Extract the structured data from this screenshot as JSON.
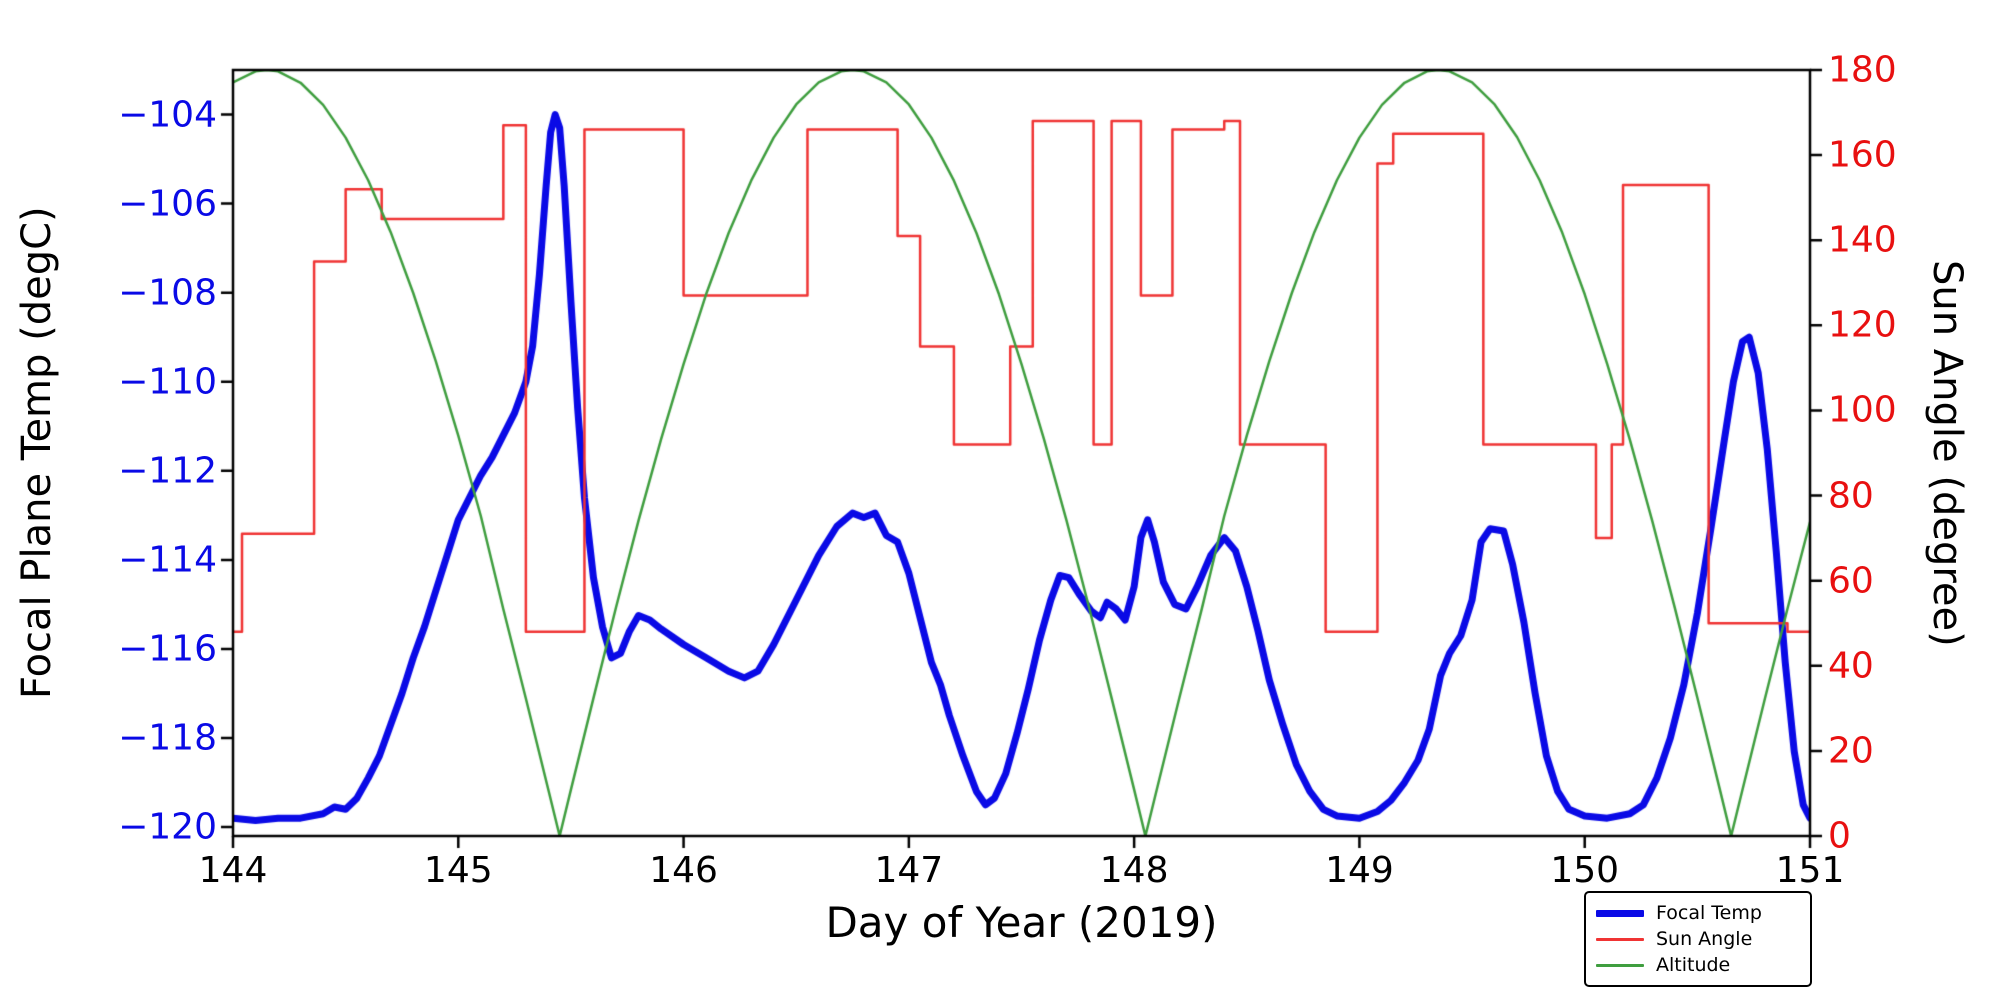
{
  "chart_data": {
    "type": "line",
    "title": "",
    "xlabel": "Day of Year (2019)",
    "ylabel_left": "Focal Plane Temp (degC)",
    "ylabel_right": "Sun Angle (degree)",
    "xlim": [
      144,
      151
    ],
    "ylim_left": [
      -120.2,
      -103.0
    ],
    "ylim_right": [
      0,
      180
    ],
    "grid": false,
    "xticks": {
      "values": [
        144,
        145,
        146,
        147,
        148,
        149,
        150,
        151
      ],
      "labels": [
        "144",
        "145",
        "146",
        "147",
        "148",
        "149",
        "150",
        "151"
      ]
    },
    "yticks_left": {
      "values": [
        -104,
        -106,
        -108,
        -110,
        -112,
        -114,
        -116,
        -118,
        -120
      ],
      "labels": [
        "−104",
        "−106",
        "−108",
        "−110",
        "−112",
        "−114",
        "−116",
        "−118",
        "−120"
      ]
    },
    "yticks_right": {
      "values": [
        0,
        20,
        40,
        60,
        80,
        100,
        120,
        140,
        160,
        180
      ],
      "labels": [
        "0",
        "20",
        "40",
        "60",
        "80",
        "100",
        "120",
        "140",
        "160",
        "180"
      ]
    },
    "legend": {
      "position": "lower right, below axis"
    },
    "series": [
      {
        "name": "Focal Temp",
        "axis": "left",
        "style": "line",
        "color": "#0a0ae6",
        "width": 7,
        "points": [
          [
            144,
            -119.8
          ],
          [
            144.1,
            -119.85
          ],
          [
            144.2,
            -119.8
          ],
          [
            144.3,
            -119.8
          ],
          [
            144.4,
            -119.7
          ],
          [
            144.45,
            -119.55
          ],
          [
            144.5,
            -119.6
          ],
          [
            144.55,
            -119.35
          ],
          [
            144.6,
            -118.9
          ],
          [
            144.65,
            -118.4
          ],
          [
            144.7,
            -117.7
          ],
          [
            144.75,
            -117.0
          ],
          [
            144.8,
            -116.2
          ],
          [
            144.85,
            -115.5
          ],
          [
            144.9,
            -114.7
          ],
          [
            144.95,
            -113.9
          ],
          [
            145.0,
            -113.1
          ],
          [
            145.05,
            -112.6
          ],
          [
            145.1,
            -112.1
          ],
          [
            145.15,
            -111.7
          ],
          [
            145.2,
            -111.2
          ],
          [
            145.25,
            -110.7
          ],
          [
            145.3,
            -110.0
          ],
          [
            145.33,
            -109.2
          ],
          [
            145.36,
            -107.6
          ],
          [
            145.39,
            -105.6
          ],
          [
            145.41,
            -104.4
          ],
          [
            145.43,
            -104.0
          ],
          [
            145.45,
            -104.3
          ],
          [
            145.47,
            -105.6
          ],
          [
            145.5,
            -108.2
          ],
          [
            145.53,
            -110.6
          ],
          [
            145.56,
            -112.6
          ],
          [
            145.6,
            -114.4
          ],
          [
            145.64,
            -115.5
          ],
          [
            145.68,
            -116.2
          ],
          [
            145.72,
            -116.1
          ],
          [
            145.76,
            -115.6
          ],
          [
            145.8,
            -115.25
          ],
          [
            145.85,
            -115.35
          ],
          [
            145.9,
            -115.55
          ],
          [
            146.0,
            -115.9
          ],
          [
            146.1,
            -116.2
          ],
          [
            146.2,
            -116.5
          ],
          [
            146.27,
            -116.65
          ],
          [
            146.33,
            -116.5
          ],
          [
            146.4,
            -115.9
          ],
          [
            146.5,
            -114.9
          ],
          [
            146.6,
            -113.9
          ],
          [
            146.68,
            -113.25
          ],
          [
            146.75,
            -112.95
          ],
          [
            146.8,
            -113.05
          ],
          [
            146.85,
            -112.95
          ],
          [
            146.9,
            -113.45
          ],
          [
            146.95,
            -113.6
          ],
          [
            147.0,
            -114.3
          ],
          [
            147.05,
            -115.3
          ],
          [
            147.1,
            -116.3
          ],
          [
            147.14,
            -116.8
          ],
          [
            147.18,
            -117.5
          ],
          [
            147.24,
            -118.4
          ],
          [
            147.3,
            -119.2
          ],
          [
            147.34,
            -119.5
          ],
          [
            147.38,
            -119.35
          ],
          [
            147.43,
            -118.8
          ],
          [
            147.48,
            -117.9
          ],
          [
            147.53,
            -116.9
          ],
          [
            147.58,
            -115.8
          ],
          [
            147.63,
            -114.9
          ],
          [
            147.67,
            -114.35
          ],
          [
            147.71,
            -114.4
          ],
          [
            147.76,
            -114.8
          ],
          [
            147.81,
            -115.15
          ],
          [
            147.85,
            -115.3
          ],
          [
            147.88,
            -114.95
          ],
          [
            147.92,
            -115.1
          ],
          [
            147.96,
            -115.35
          ],
          [
            148.0,
            -114.6
          ],
          [
            148.03,
            -113.5
          ],
          [
            148.06,
            -113.1
          ],
          [
            148.09,
            -113.6
          ],
          [
            148.13,
            -114.5
          ],
          [
            148.18,
            -115.0
          ],
          [
            148.23,
            -115.1
          ],
          [
            148.28,
            -114.6
          ],
          [
            148.34,
            -113.9
          ],
          [
            148.4,
            -113.5
          ],
          [
            148.45,
            -113.8
          ],
          [
            148.5,
            -114.6
          ],
          [
            148.55,
            -115.6
          ],
          [
            148.6,
            -116.7
          ],
          [
            148.66,
            -117.7
          ],
          [
            148.72,
            -118.6
          ],
          [
            148.78,
            -119.2
          ],
          [
            148.84,
            -119.6
          ],
          [
            148.9,
            -119.75
          ],
          [
            149.0,
            -119.8
          ],
          [
            149.08,
            -119.65
          ],
          [
            149.14,
            -119.4
          ],
          [
            149.2,
            -119.0
          ],
          [
            149.26,
            -118.5
          ],
          [
            149.31,
            -117.8
          ],
          [
            149.36,
            -116.6
          ],
          [
            149.4,
            -116.1
          ],
          [
            149.45,
            -115.7
          ],
          [
            149.5,
            -114.9
          ],
          [
            149.54,
            -113.6
          ],
          [
            149.58,
            -113.3
          ],
          [
            149.64,
            -113.35
          ],
          [
            149.68,
            -114.1
          ],
          [
            149.73,
            -115.4
          ],
          [
            149.78,
            -117.0
          ],
          [
            149.83,
            -118.4
          ],
          [
            149.88,
            -119.2
          ],
          [
            149.93,
            -119.6
          ],
          [
            150.0,
            -119.75
          ],
          [
            150.1,
            -119.8
          ],
          [
            150.2,
            -119.7
          ],
          [
            150.26,
            -119.5
          ],
          [
            150.32,
            -118.9
          ],
          [
            150.38,
            -118.0
          ],
          [
            150.44,
            -116.8
          ],
          [
            150.5,
            -115.2
          ],
          [
            150.56,
            -113.3
          ],
          [
            150.62,
            -111.3
          ],
          [
            150.66,
            -110.0
          ],
          [
            150.7,
            -109.1
          ],
          [
            150.73,
            -109.0
          ],
          [
            150.77,
            -109.8
          ],
          [
            150.81,
            -111.5
          ],
          [
            150.85,
            -113.8
          ],
          [
            150.89,
            -116.3
          ],
          [
            150.93,
            -118.3
          ],
          [
            150.97,
            -119.5
          ],
          [
            151.0,
            -119.8
          ]
        ]
      },
      {
        "name": "Sun Angle",
        "axis": "right",
        "style": "step",
        "color": "#f03434",
        "width": 2.5,
        "points": [
          [
            144.0,
            48
          ],
          [
            144.04,
            71
          ],
          [
            144.36,
            135
          ],
          [
            144.5,
            152
          ],
          [
            144.66,
            145
          ],
          [
            145.2,
            167
          ],
          [
            145.3,
            48
          ],
          [
            145.56,
            166
          ],
          [
            146.0,
            127
          ],
          [
            146.55,
            166
          ],
          [
            146.95,
            141
          ],
          [
            147.05,
            115
          ],
          [
            147.2,
            92
          ],
          [
            147.45,
            115
          ],
          [
            147.55,
            168
          ],
          [
            147.82,
            92
          ],
          [
            147.9,
            168
          ],
          [
            148.03,
            127
          ],
          [
            148.17,
            166
          ],
          [
            148.4,
            168
          ],
          [
            148.47,
            92
          ],
          [
            148.85,
            48
          ],
          [
            149.08,
            158
          ],
          [
            149.15,
            165
          ],
          [
            149.55,
            92
          ],
          [
            150.05,
            70
          ],
          [
            150.12,
            92
          ],
          [
            150.17,
            153
          ],
          [
            150.55,
            50
          ],
          [
            150.9,
            48
          ]
        ]
      },
      {
        "name": "Altitude",
        "axis": "right",
        "style": "line",
        "color": "#3f9e3f",
        "width": 2.5,
        "points": [
          [
            144.0,
            177.1
          ],
          [
            144.1,
            179.7
          ],
          [
            144.15,
            180
          ],
          [
            144.2,
            179.7
          ],
          [
            144.3,
            177.0
          ],
          [
            144.4,
            171.8
          ],
          [
            144.5,
            164.1
          ],
          [
            144.6,
            154.1
          ],
          [
            144.7,
            141.9
          ],
          [
            144.8,
            127.6
          ],
          [
            144.9,
            111.6
          ],
          [
            145.0,
            94.1
          ],
          [
            145.1,
            75.2
          ],
          [
            145.2,
            53.3
          ],
          [
            145.3,
            32.3
          ],
          [
            145.4,
            10.8
          ],
          [
            145.45,
            0
          ],
          [
            145.5,
            10.9
          ],
          [
            145.6,
            32.4
          ],
          [
            145.7,
            53.7
          ],
          [
            145.8,
            74.1
          ],
          [
            145.9,
            93.2
          ],
          [
            146.0,
            110.9
          ],
          [
            146.1,
            127.3
          ],
          [
            146.2,
            141.7
          ],
          [
            146.3,
            154.0
          ],
          [
            146.4,
            164.1
          ],
          [
            146.5,
            171.9
          ],
          [
            146.6,
            177.1
          ],
          [
            146.7,
            179.7
          ],
          [
            146.75,
            180
          ],
          [
            146.8,
            179.7
          ],
          [
            146.9,
            177.1
          ],
          [
            147.0,
            171.9
          ],
          [
            147.1,
            164.1
          ],
          [
            147.2,
            154.0
          ],
          [
            147.3,
            141.7
          ],
          [
            147.4,
            127.3
          ],
          [
            147.5,
            110.9
          ],
          [
            147.6,
            93.2
          ],
          [
            147.7,
            74.1
          ],
          [
            147.8,
            53.7
          ],
          [
            147.9,
            32.4
          ],
          [
            148.0,
            10.9
          ],
          [
            148.05,
            0
          ],
          [
            148.1,
            10.8
          ],
          [
            148.2,
            32.3
          ],
          [
            148.3,
            53.3
          ],
          [
            148.4,
            75.2
          ],
          [
            148.5,
            94.1
          ],
          [
            148.6,
            111.6
          ],
          [
            148.7,
            127.6
          ],
          [
            148.8,
            141.9
          ],
          [
            148.9,
            154.1
          ],
          [
            149.0,
            164.1
          ],
          [
            149.1,
            171.8
          ],
          [
            149.2,
            177.0
          ],
          [
            149.3,
            179.7
          ],
          [
            149.35,
            180
          ],
          [
            149.4,
            179.7
          ],
          [
            149.5,
            177.1
          ],
          [
            149.6,
            171.9
          ],
          [
            149.7,
            164.2
          ],
          [
            149.8,
            154.1
          ],
          [
            149.9,
            141.8
          ],
          [
            150.0,
            127.3
          ],
          [
            150.1,
            110.9
          ],
          [
            150.2,
            93.2
          ],
          [
            150.3,
            74.0
          ],
          [
            150.4,
            53.6
          ],
          [
            150.5,
            32.5
          ],
          [
            150.6,
            10.9
          ],
          [
            150.65,
            0
          ],
          [
            150.7,
            10.8
          ],
          [
            150.8,
            32.3
          ],
          [
            150.9,
            53.4
          ],
          [
            151.0,
            73.8
          ]
        ]
      }
    ]
  },
  "colors": {
    "left_axis_labels": "#0a0ae6",
    "right_axis_labels": "#e81010",
    "axis_frame": "#000000",
    "background": "#ffffff"
  }
}
